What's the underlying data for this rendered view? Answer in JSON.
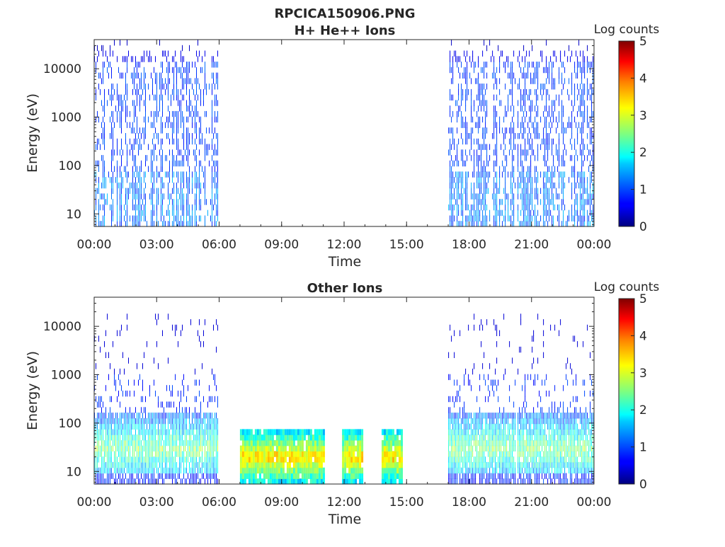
{
  "figure": {
    "title_line1": "RPCICA150906.PNG",
    "title_line2": "H+ He++ Ions"
  },
  "chart_data": [
    {
      "type": "heatmap",
      "title": "RPCICA150906.PNG H+ He++ Ions",
      "xlabel": "Time",
      "ylabel": "Energy (eV)",
      "x_tick_labels": [
        "00:00",
        "03:00",
        "06:00",
        "09:00",
        "12:00",
        "15:00",
        "18:00",
        "21:00",
        "00:00"
      ],
      "x_ticks_hours": [
        0,
        3,
        6,
        9,
        12,
        15,
        18,
        21,
        24
      ],
      "xlim_hours": [
        0,
        24
      ],
      "y_scale": "log",
      "y_tick_labels": [
        "10",
        "100",
        "1000",
        "10000"
      ],
      "y_ticks": [
        10,
        100,
        1000,
        10000
      ],
      "ylim": [
        5.5,
        40000
      ],
      "colorbar": {
        "label": "Log counts",
        "ticks": [
          "0",
          "1",
          "2",
          "3",
          "4",
          "5"
        ],
        "range": [
          0,
          5
        ],
        "colormap": "jet"
      },
      "data_segments": [
        {
          "start_hour": 0.0,
          "end_hour": 5.95,
          "description": "diffuse ~0-1 log counts from 6 eV to 20000 eV, slightly higher below 100 eV"
        },
        {
          "start_hour": 17.0,
          "end_hour": 24.0,
          "description": "diffuse ~0-1 log counts from 6 eV to 20000 eV, gap near 20:15"
        }
      ],
      "grid": false
    },
    {
      "type": "heatmap",
      "title": "Other Ions",
      "xlabel": "Time",
      "ylabel": "Energy (eV)",
      "x_tick_labels": [
        "00:00",
        "03:00",
        "06:00",
        "09:00",
        "12:00",
        "15:00",
        "18:00",
        "21:00",
        "00:00"
      ],
      "x_ticks_hours": [
        0,
        3,
        6,
        9,
        12,
        15,
        18,
        21,
        24
      ],
      "xlim_hours": [
        0,
        24
      ],
      "y_scale": "log",
      "y_tick_labels": [
        "10",
        "100",
        "1000",
        "10000"
      ],
      "y_ticks": [
        10,
        100,
        1000,
        10000
      ],
      "ylim": [
        5.5,
        40000
      ],
      "colorbar": {
        "label": "Log counts",
        "ticks": [
          "0",
          "1",
          "2",
          "3",
          "4",
          "5"
        ],
        "range": [
          0,
          5
        ],
        "colormap": "jet"
      },
      "data_segments": [
        {
          "start_hour": 0.0,
          "end_hour": 5.95,
          "description": "~1-3 log counts between 10 and 100 eV, sparse above"
        },
        {
          "start_hour": 7.0,
          "end_hour": 11.0,
          "description": "~1-3.5 log counts between 6 and 80 eV, peak band near 20 eV"
        },
        {
          "start_hour": 11.9,
          "end_hour": 12.9,
          "description": "~1-3.5 log counts between 6 and 80 eV"
        },
        {
          "start_hour": 13.8,
          "end_hour": 14.8,
          "description": "~1-3 log counts between 6 and 80 eV"
        },
        {
          "start_hour": 17.0,
          "end_hour": 24.0,
          "description": "~1-3 log counts between 10 and 100 eV, sparse above"
        }
      ],
      "grid": false
    }
  ]
}
